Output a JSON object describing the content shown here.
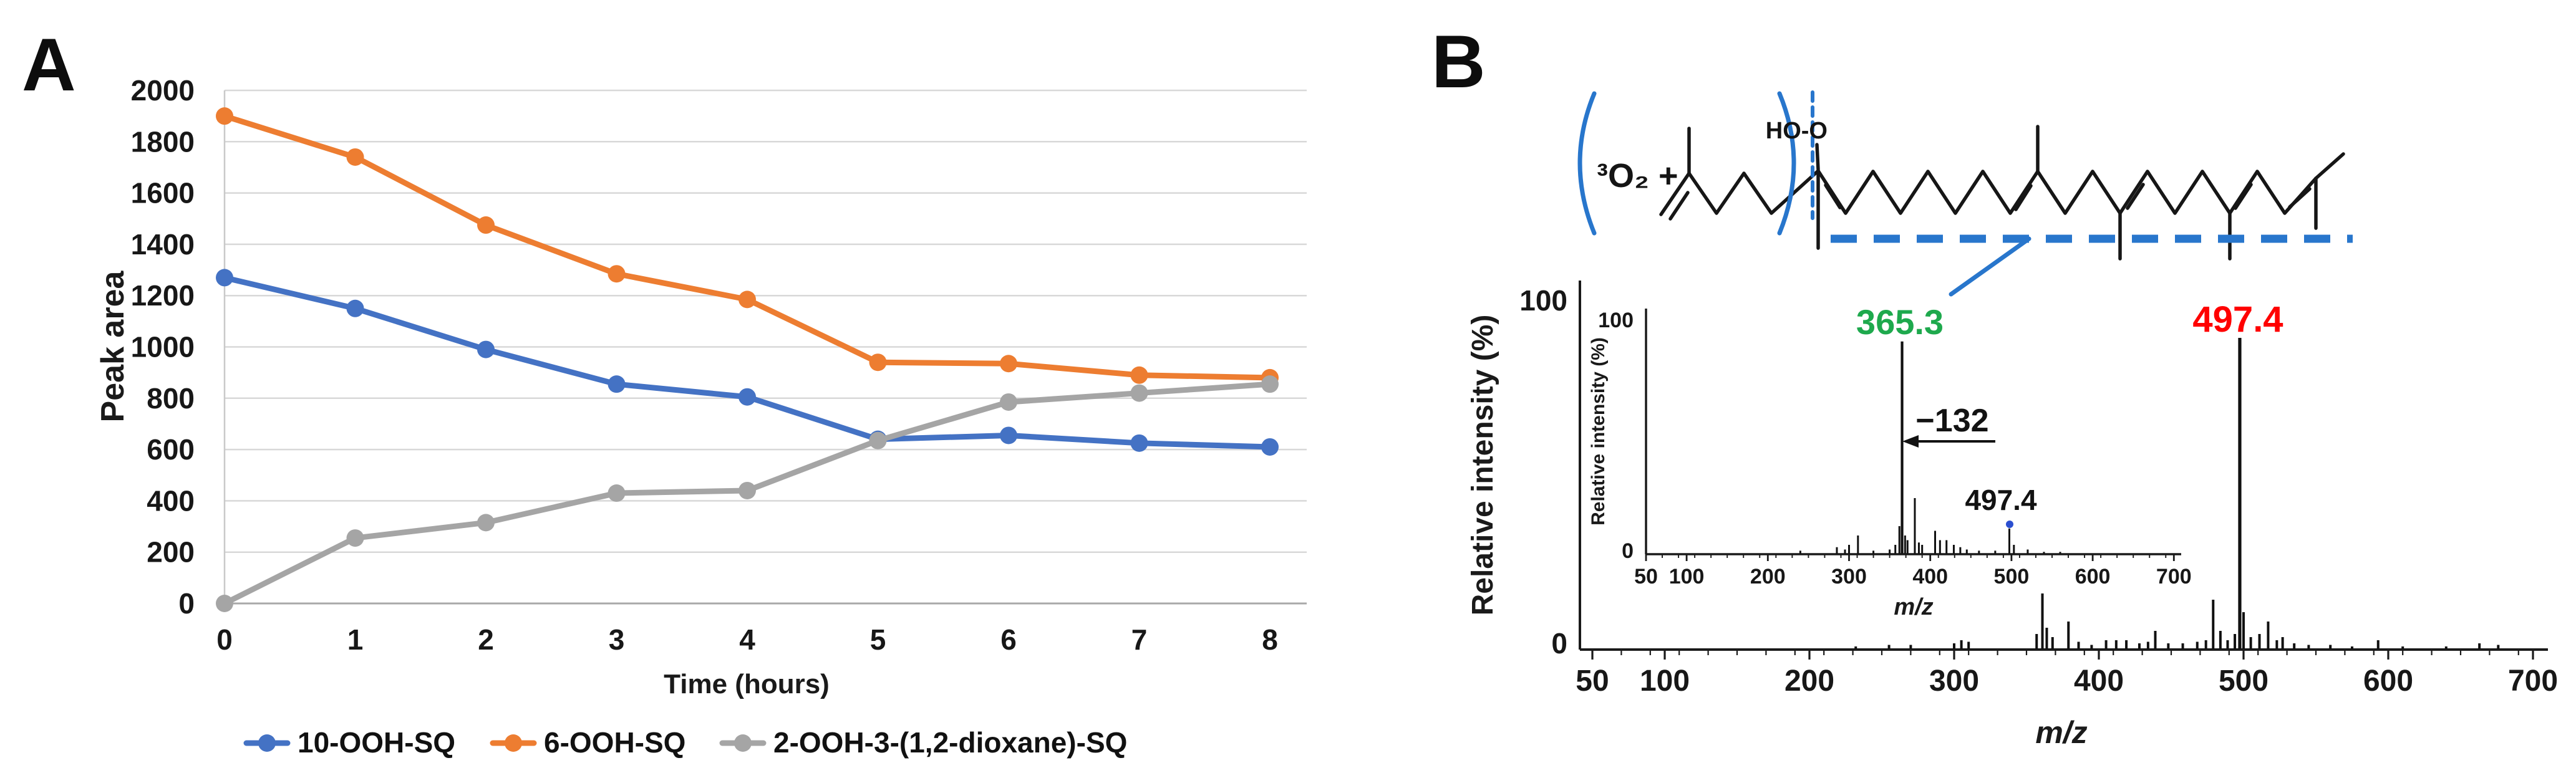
{
  "figure": {
    "panelA": {
      "label": "A",
      "y_axis_title": "Peak area",
      "x_axis_title": "Time (hours)"
    },
    "panelB": {
      "label": "B",
      "oxygen_label": "³O₂ +",
      "hydroperoxide_label": "HO-O",
      "fragment_annotation": "365.3",
      "parent_annotation": "497.4",
      "colors": {
        "fragment_green": "#1EA94D",
        "parent_red": "#FF0000",
        "annotation_blue": "#2876CC",
        "structure_black": "#161616"
      }
    }
  },
  "chart_data": [
    {
      "id": "peak-area-line-chart",
      "type": "line",
      "title": "",
      "xlabel": "Time (hours)",
      "ylabel": "Peak area",
      "categories": [
        0,
        1,
        2,
        3,
        4,
        5,
        6,
        7,
        8
      ],
      "x_ticks": [
        0,
        1,
        2,
        3,
        4,
        5,
        6,
        7,
        8
      ],
      "y_ticks": [
        2000,
        1800,
        1600,
        1400,
        1200,
        1000,
        800,
        600,
        400,
        200,
        0
      ],
      "ylim": [
        0,
        2000
      ],
      "grid": true,
      "legend_position": "bottom",
      "series": [
        {
          "name": "10-OOH-SQ",
          "color": "#4472C4",
          "values": [
            1270,
            1150,
            990,
            855,
            805,
            640,
            655,
            625,
            610
          ]
        },
        {
          "name": "6-OOH-SQ",
          "color": "#ED7D31",
          "values": [
            1900,
            1740,
            1475,
            1285,
            1185,
            940,
            935,
            890,
            880
          ]
        },
        {
          "name": "2-OOH-3-(1,2-dioxane)-SQ",
          "color": "#A5A5A5",
          "values": [
            0,
            255,
            315,
            430,
            440,
            635,
            785,
            820,
            855
          ]
        }
      ]
    },
    {
      "id": "main-mass-spectrum",
      "type": "bar",
      "subtype": "mass_spectrum",
      "xlabel": "m/z",
      "ylabel": "Relative intensity (%)",
      "xlim": [
        50,
        700
      ],
      "ylim": [
        0,
        100
      ],
      "x_ticks": [
        50,
        100,
        200,
        300,
        400,
        500,
        600,
        700
      ],
      "y_ticks": [
        100,
        0
      ],
      "base_peak": {
        "mz": 497.4,
        "label": "497.4"
      },
      "peaks": [
        [
          232,
          1
        ],
        [
          255,
          1.5
        ],
        [
          270,
          1.5
        ],
        [
          300,
          2
        ],
        [
          305,
          3
        ],
        [
          310,
          2.5
        ],
        [
          357,
          5
        ],
        [
          361,
          18
        ],
        [
          364,
          7
        ],
        [
          368,
          4
        ],
        [
          379,
          9
        ],
        [
          386,
          2.5
        ],
        [
          395,
          1.5
        ],
        [
          405,
          3
        ],
        [
          412,
          3
        ],
        [
          419,
          3
        ],
        [
          428,
          2
        ],
        [
          434,
          2.5
        ],
        [
          439,
          6
        ],
        [
          448,
          2
        ],
        [
          458,
          2
        ],
        [
          468,
          2.5
        ],
        [
          474,
          3
        ],
        [
          479,
          16
        ],
        [
          484,
          6
        ],
        [
          489,
          3
        ],
        [
          494,
          5
        ],
        [
          497.4,
          100
        ],
        [
          500,
          12
        ],
        [
          505,
          4
        ],
        [
          511,
          5
        ],
        [
          517,
          9
        ],
        [
          523,
          3
        ],
        [
          527,
          4
        ],
        [
          535,
          2
        ],
        [
          545,
          1.5
        ],
        [
          560,
          1.5
        ],
        [
          575,
          1
        ],
        [
          593,
          3
        ],
        [
          610,
          1
        ],
        [
          640,
          1
        ],
        [
          663,
          2
        ],
        [
          676,
          1.5
        ]
      ]
    },
    {
      "id": "inset-ms2-spectrum",
      "type": "bar",
      "subtype": "mass_spectrum",
      "xlabel": "m/z",
      "ylabel": "Relative intensity (%)",
      "xlim": [
        50,
        700
      ],
      "ylim": [
        0,
        100
      ],
      "x_ticks": [
        50,
        100,
        200,
        300,
        400,
        500,
        600,
        700
      ],
      "y_ticks": [
        100,
        0
      ],
      "annotations": {
        "loss": "−132",
        "precursor_label": "497.4",
        "fragment_label": "365.3"
      },
      "peaks": [
        [
          240,
          1.5
        ],
        [
          285,
          3
        ],
        [
          295,
          2
        ],
        [
          300,
          4
        ],
        [
          311,
          8
        ],
        [
          330,
          1.5
        ],
        [
          350,
          2
        ],
        [
          357,
          4
        ],
        [
          362,
          12
        ],
        [
          365.3,
          91
        ],
        [
          369,
          8
        ],
        [
          372,
          6
        ],
        [
          381,
          24
        ],
        [
          386,
          5
        ],
        [
          390,
          4
        ],
        [
          406,
          10
        ],
        [
          412,
          6
        ],
        [
          420,
          6
        ],
        [
          429,
          4
        ],
        [
          437,
          3
        ],
        [
          445,
          2
        ],
        [
          460,
          1.5
        ],
        [
          480,
          1.5
        ],
        [
          497.4,
          11
        ],
        [
          503,
          4
        ],
        [
          520,
          2
        ],
        [
          540,
          1
        ],
        [
          560,
          1
        ]
      ]
    }
  ]
}
